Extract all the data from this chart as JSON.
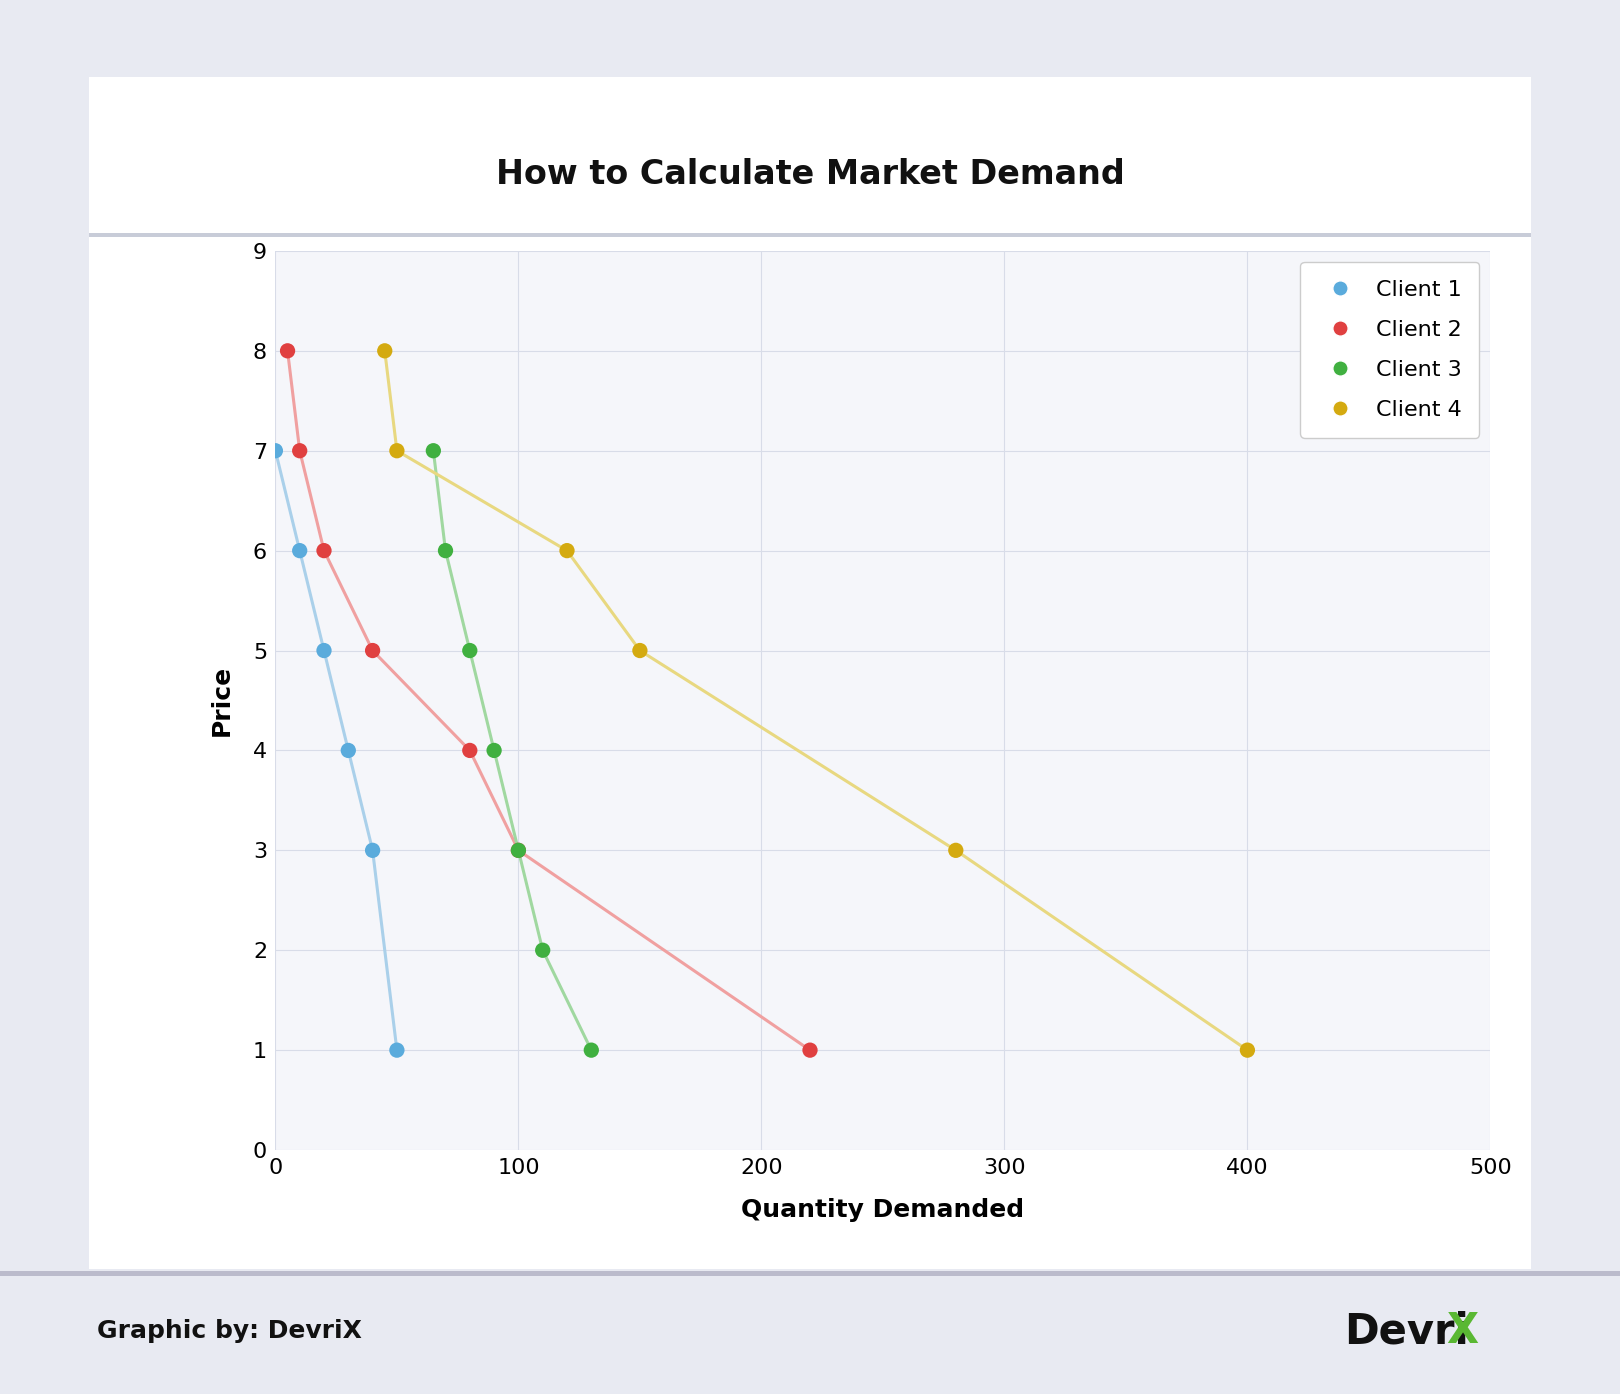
{
  "title": "How to Calculate Market Demand",
  "xlabel": "Quantity Demanded",
  "ylabel": "Price",
  "xlim": [
    0,
    500
  ],
  "ylim": [
    0,
    9
  ],
  "xticks": [
    0,
    100,
    200,
    300,
    400,
    500
  ],
  "yticks": [
    0,
    1,
    2,
    3,
    4,
    5,
    6,
    7,
    8,
    9
  ],
  "background_outer": "#e8eaf2",
  "background_card": "#ffffff",
  "background_chart": "#f5f6fa",
  "background_footer": "#e8eaf2",
  "grid_color": "#d8dce8",
  "separator_color": "#c8ccd8",
  "clients": [
    {
      "label": "Client 1",
      "color": "#5aabdc",
      "line_color": "#aad0ea",
      "x": [
        0,
        10,
        20,
        30,
        40,
        50
      ],
      "y": [
        7,
        6,
        5,
        4,
        3,
        1
      ]
    },
    {
      "label": "Client 2",
      "color": "#e04040",
      "line_color": "#f0a0a0",
      "x": [
        5,
        10,
        20,
        40,
        80,
        100,
        220
      ],
      "y": [
        8,
        7,
        6,
        5,
        4,
        3,
        1
      ]
    },
    {
      "label": "Client 3",
      "color": "#40b040",
      "line_color": "#a0d8a0",
      "x": [
        65,
        70,
        80,
        90,
        100,
        110,
        130
      ],
      "y": [
        7,
        6,
        5,
        4,
        3,
        2,
        1
      ]
    },
    {
      "label": "Client 4",
      "color": "#d4aa10",
      "line_color": "#e8d880",
      "x": [
        45,
        50,
        120,
        150,
        280,
        400
      ],
      "y": [
        8,
        7,
        6,
        5,
        3,
        1
      ]
    }
  ],
  "legend_pos": "upper right",
  "title_fontsize": 24,
  "label_fontsize": 18,
  "tick_fontsize": 16,
  "legend_fontsize": 16,
  "marker_size": 11,
  "line_width": 2.2,
  "footer_text": "Graphic by: DevriX",
  "footer_color": "#111111",
  "footer_fontsize": 18,
  "devrix_color": "#111111",
  "devrix_x_color": "#5ab833",
  "devrix_fontsize": 30
}
